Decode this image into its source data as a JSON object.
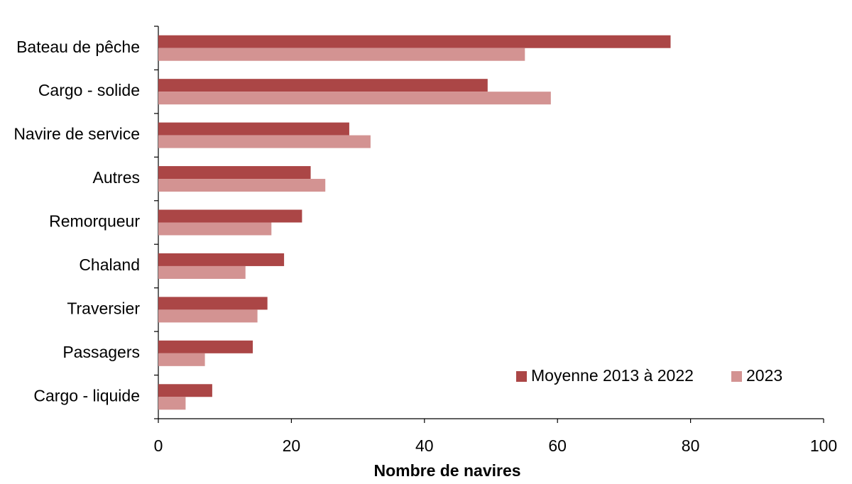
{
  "chart_data": {
    "type": "bar",
    "orientation": "horizontal",
    "x_label": "Nombre de navires",
    "categories": [
      "Bateau de pêche",
      "Cargo - solide",
      "Navire de service",
      "Autres",
      "Remorqueur",
      "Chaland",
      "Traversier",
      "Passagers",
      "Cargo - liquide"
    ],
    "series": [
      {
        "name": "Moyenne 2013 à 2022",
        "color": "#ab4646",
        "values": [
          77.0,
          49.5,
          28.7,
          22.9,
          21.6,
          18.9,
          16.4,
          14.2,
          8.1
        ]
      },
      {
        "name": "2023",
        "color": "#d39392",
        "values": [
          55.1,
          59.0,
          31.9,
          25.1,
          17.0,
          13.1,
          14.9,
          7.0,
          4.1
        ]
      }
    ],
    "xlim": [
      0,
      100
    ],
    "xticks": [
      0,
      20,
      40,
      60,
      80,
      100
    ],
    "grid": false,
    "legend": "lower right"
  }
}
